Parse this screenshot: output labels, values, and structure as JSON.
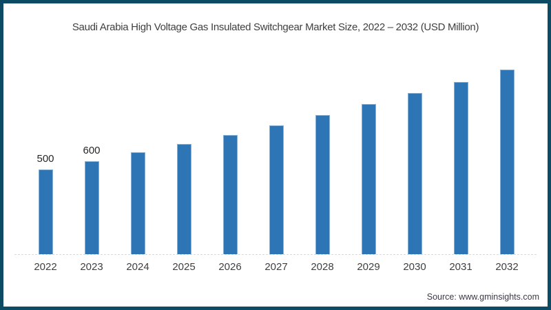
{
  "frame": {
    "border_color": "#0d4a63",
    "background_color": "#ffffff"
  },
  "chart": {
    "title": "Saudi Arabia High Voltage Gas Insulated Switchgear Market Size, 2022 – 2032 (USD Million)",
    "source": "Source: www.gminsights.com"
  },
  "chart_data": {
    "type": "bar",
    "title": "Saudi Arabia High Voltage Gas Insulated Switchgear Market Size, 2022 – 2032 (USD Million)",
    "categories": [
      "2022",
      "2023",
      "2024",
      "2025",
      "2026",
      "2027",
      "2028",
      "2029",
      "2030",
      "2031",
      "2032"
    ],
    "values": [
      500,
      600,
      710,
      810,
      915,
      1035,
      1160,
      1290,
      1425,
      1560,
      1710
    ],
    "data_labels": [
      "500",
      "600",
      "",
      "",
      "",
      "",
      "",
      "",
      "",
      "",
      ""
    ],
    "xlabel": "",
    "ylabel": "",
    "ylim": [
      -525,
      1975
    ],
    "grid": false,
    "legend": false,
    "bar_color": "#2e75b6",
    "bar_edge_color": "#86b2da",
    "axis_line_color": "#d9d9d9",
    "label_color": "#3f3f3f"
  }
}
